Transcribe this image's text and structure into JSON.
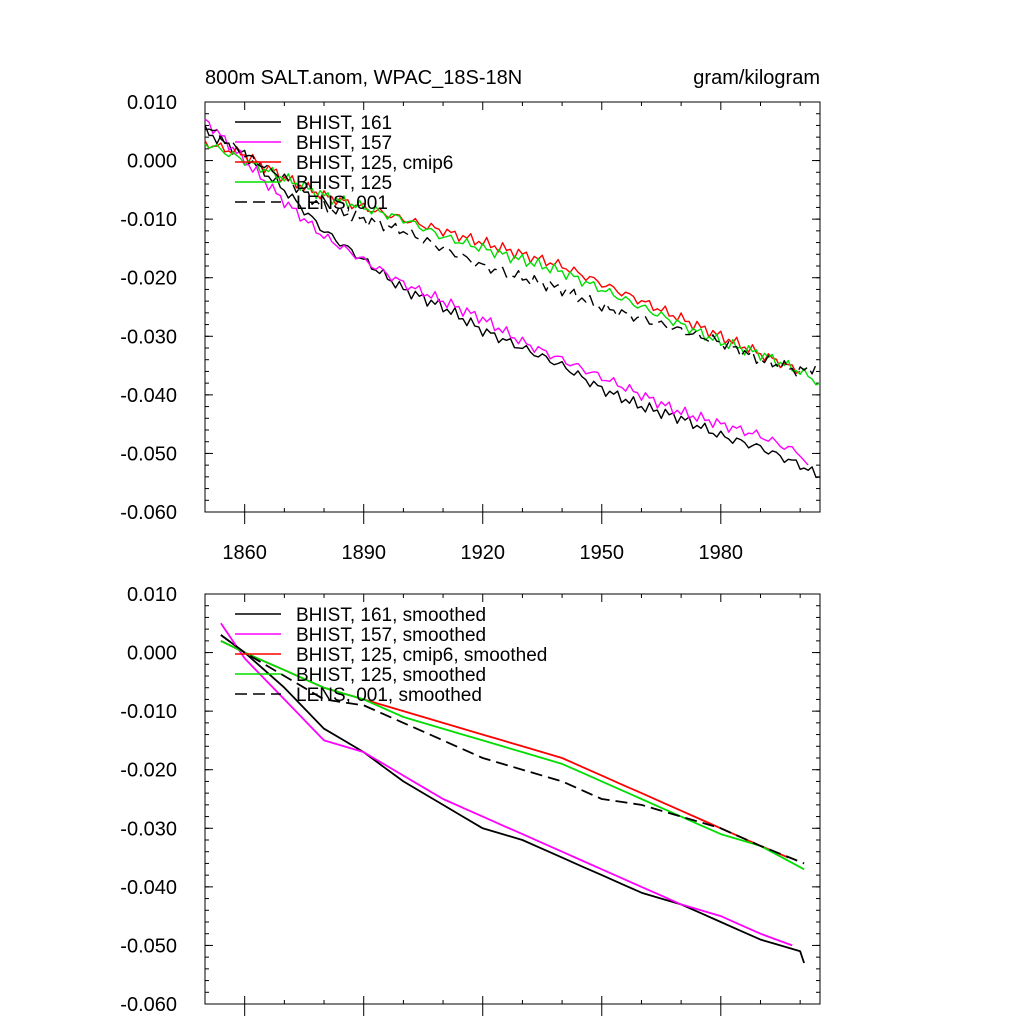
{
  "chart_data": [
    {
      "type": "line",
      "title": "800m SALT.anom, WPAC_18S-18N",
      "units": "gram/kilogram",
      "xlim": [
        1850,
        2005
      ],
      "ylim": [
        -0.06,
        0.01
      ],
      "yticks": [
        "0.010",
        "0.000",
        "-0.010",
        "-0.020",
        "-0.030",
        "-0.040",
        "-0.050",
        "-0.060"
      ],
      "xticks": [
        "1860",
        "1890",
        "1920",
        "1950",
        "1980"
      ],
      "legend_position": "top-left",
      "series": [
        {
          "name": "BHIST, 161",
          "color": "#000000",
          "dash": "solid",
          "x": [
            1850,
            1860,
            1870,
            1880,
            1890,
            1900,
            1910,
            1920,
            1930,
            1940,
            1950,
            1960,
            1970,
            1980,
            1990,
            2000,
            2005
          ],
          "y": [
            0.005,
            0.001,
            -0.005,
            -0.012,
            -0.017,
            -0.022,
            -0.025,
            -0.029,
            -0.032,
            -0.035,
            -0.039,
            -0.042,
            -0.044,
            -0.047,
            -0.049,
            -0.052,
            -0.054
          ]
        },
        {
          "name": "BHIST, 157",
          "color": "#ff00ff",
          "dash": "solid",
          "x": [
            1850,
            1860,
            1870,
            1880,
            1890,
            1900,
            1910,
            1920,
            1930,
            1940,
            1950,
            1960,
            1970,
            1980,
            1990,
            2000,
            2002
          ],
          "y": [
            0.007,
            0.0,
            -0.007,
            -0.013,
            -0.017,
            -0.021,
            -0.024,
            -0.027,
            -0.031,
            -0.034,
            -0.037,
            -0.04,
            -0.043,
            -0.045,
            -0.047,
            -0.05,
            -0.052
          ]
        },
        {
          "name": "BHIST, 125, cmip6",
          "color": "#ff0000",
          "dash": "solid",
          "x": [
            1850,
            1860,
            1870,
            1880,
            1890,
            1900,
            1910,
            1920,
            1930,
            1940,
            1950,
            1960,
            1970,
            1980,
            1990,
            2000
          ],
          "y": [
            0.003,
            0.001,
            -0.003,
            -0.006,
            -0.008,
            -0.01,
            -0.012,
            -0.014,
            -0.016,
            -0.018,
            -0.021,
            -0.024,
            -0.027,
            -0.03,
            -0.033,
            -0.036
          ]
        },
        {
          "name": "BHIST, 125",
          "color": "#00dd00",
          "dash": "solid",
          "x": [
            1850,
            1860,
            1870,
            1880,
            1890,
            1900,
            1910,
            1920,
            1930,
            1940,
            1950,
            1960,
            1970,
            1980,
            1990,
            2000,
            2005
          ],
          "y": [
            0.003,
            0.0,
            -0.003,
            -0.006,
            -0.008,
            -0.01,
            -0.013,
            -0.015,
            -0.017,
            -0.019,
            -0.022,
            -0.025,
            -0.028,
            -0.031,
            -0.033,
            -0.036,
            -0.038
          ]
        },
        {
          "name": "LENS, 001",
          "color": "#000000",
          "dash": "dashed",
          "x": [
            1850,
            1860,
            1870,
            1880,
            1890,
            1900,
            1910,
            1920,
            1930,
            1940,
            1950,
            1960,
            1970,
            1980,
            1990,
            2000,
            2005
          ],
          "y": [
            0.006,
            0.001,
            -0.003,
            -0.008,
            -0.01,
            -0.012,
            -0.015,
            -0.018,
            -0.02,
            -0.022,
            -0.025,
            -0.027,
            -0.029,
            -0.031,
            -0.034,
            -0.036,
            -0.035
          ]
        }
      ]
    },
    {
      "type": "line",
      "title": "",
      "units": "",
      "xlim": [
        1850,
        2005
      ],
      "ylim": [
        -0.06,
        0.01
      ],
      "yticks": [
        "0.010",
        "0.000",
        "-0.010",
        "-0.020",
        "-0.030",
        "-0.040",
        "-0.050",
        "-0.060"
      ],
      "xticks": [],
      "legend_position": "top-left",
      "series": [
        {
          "name": "BHIST, 161, smoothed",
          "color": "#000000",
          "dash": "solid",
          "x": [
            1854,
            1860,
            1870,
            1880,
            1890,
            1900,
            1910,
            1920,
            1930,
            1940,
            1950,
            1960,
            1970,
            1980,
            1990,
            2000,
            2001
          ],
          "y": [
            0.003,
            0.0,
            -0.006,
            -0.013,
            -0.017,
            -0.022,
            -0.026,
            -0.03,
            -0.032,
            -0.035,
            -0.038,
            -0.041,
            -0.043,
            -0.046,
            -0.049,
            -0.051,
            -0.053
          ]
        },
        {
          "name": "BHIST, 157, smoothed",
          "color": "#ff00ff",
          "dash": "solid",
          "x": [
            1854,
            1860,
            1870,
            1880,
            1890,
            1900,
            1910,
            1920,
            1930,
            1940,
            1950,
            1960,
            1970,
            1980,
            1990,
            1998
          ],
          "y": [
            0.005,
            -0.001,
            -0.008,
            -0.015,
            -0.017,
            -0.021,
            -0.025,
            -0.028,
            -0.031,
            -0.034,
            -0.037,
            -0.04,
            -0.043,
            -0.045,
            -0.048,
            -0.05
          ]
        },
        {
          "name": "BHIST, 125, cmip6, smoothed",
          "color": "#ff0000",
          "dash": "solid",
          "x": [
            1854,
            1860,
            1870,
            1880,
            1890,
            1900,
            1910,
            1920,
            1930,
            1940,
            1950,
            1960,
            1970,
            1980,
            1990,
            1997
          ],
          "y": [
            0.002,
            0.0,
            -0.003,
            -0.006,
            -0.008,
            -0.01,
            -0.012,
            -0.014,
            -0.016,
            -0.018,
            -0.021,
            -0.024,
            -0.027,
            -0.03,
            -0.033,
            -0.035
          ]
        },
        {
          "name": "BHIST, 125, smoothed",
          "color": "#00dd00",
          "dash": "solid",
          "x": [
            1854,
            1860,
            1870,
            1880,
            1890,
            1900,
            1910,
            1920,
            1930,
            1940,
            1950,
            1960,
            1970,
            1980,
            1990,
            2001
          ],
          "y": [
            0.002,
            0.0,
            -0.003,
            -0.006,
            -0.008,
            -0.011,
            -0.013,
            -0.015,
            -0.017,
            -0.019,
            -0.022,
            -0.025,
            -0.028,
            -0.031,
            -0.033,
            -0.037
          ]
        },
        {
          "name": "LENS, 001, smoothed",
          "color": "#000000",
          "dash": "dashed",
          "x": [
            1854,
            1860,
            1870,
            1880,
            1890,
            1900,
            1910,
            1920,
            1930,
            1940,
            1950,
            1960,
            1970,
            1980,
            1990,
            2001
          ],
          "y": [
            0.003,
            0.0,
            -0.004,
            -0.008,
            -0.009,
            -0.012,
            -0.015,
            -0.018,
            -0.02,
            -0.022,
            -0.025,
            -0.026,
            -0.028,
            -0.03,
            -0.033,
            -0.036
          ]
        }
      ]
    }
  ]
}
